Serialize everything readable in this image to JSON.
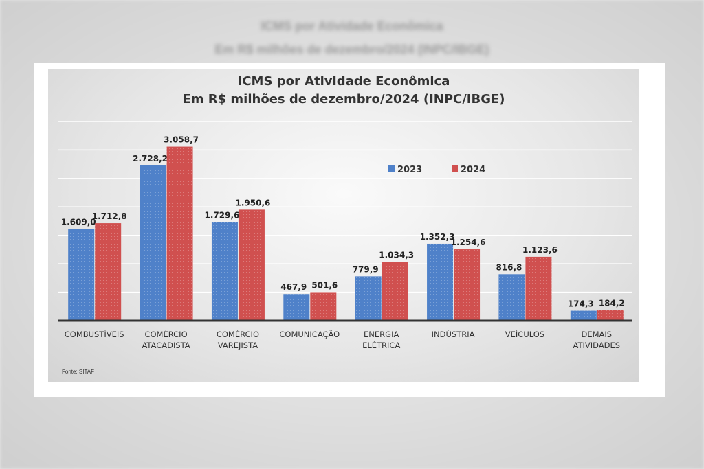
{
  "chart_data": {
    "type": "bar",
    "title": "ICMS por Atividade Econômica",
    "subtitle": "Em R$ milhões de dezembro/2024 (INPC/IBGE)",
    "categories": [
      [
        "COMBUSTÍVEIS"
      ],
      [
        "COMÉRCIO",
        "ATACADISTA"
      ],
      [
        "COMÉRCIO",
        "VAREJISTA"
      ],
      [
        "COMUNICAÇÃO"
      ],
      [
        "ENERGIA",
        "ELÉTRICA"
      ],
      [
        "INDÚSTRIA"
      ],
      [
        "VEÍCULOS"
      ],
      [
        "DEMAIS",
        "ATIVIDADES"
      ]
    ],
    "series": [
      {
        "name": "2023",
        "color": "#4f81c9",
        "values": [
          1609.0,
          2728.2,
          1729.6,
          467.9,
          779.9,
          1352.3,
          816.8,
          174.3
        ],
        "labels": [
          "1.609,0",
          "2.728,2",
          "1.729,6",
          "467,9",
          "779,9",
          "1.352,3",
          "816,8",
          "174,3"
        ]
      },
      {
        "name": "2024",
        "color": "#d0504f",
        "values": [
          1712.8,
          3058.7,
          1950.6,
          501.6,
          1034.3,
          1254.6,
          1123.6,
          184.2
        ],
        "labels": [
          "1.712,8",
          "3.058,7",
          "1.950,6",
          "501,6",
          "1.034,3",
          "1.254,6",
          "1.123,6",
          "184,2"
        ]
      }
    ],
    "ylim": [
      0,
      3500
    ],
    "grid": true,
    "legend": "top-center",
    "source": "Fonte: SITAF"
  }
}
